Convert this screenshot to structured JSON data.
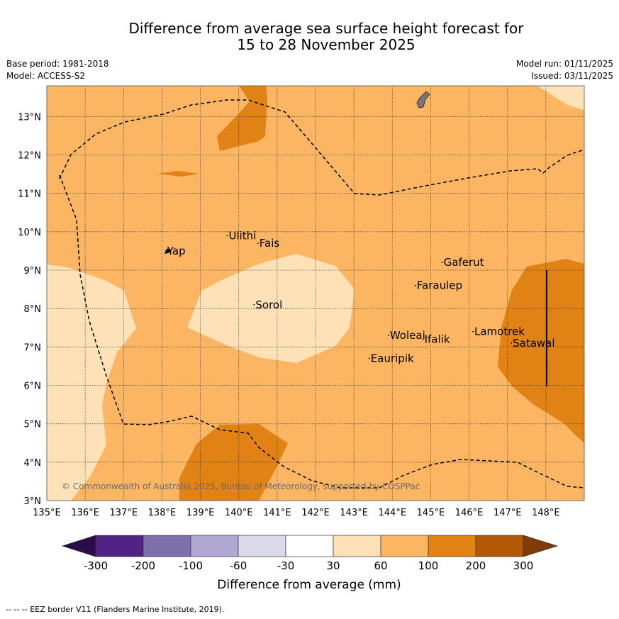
{
  "title": {
    "line1": "Difference from average sea surface height forecast for",
    "line2": "15 to 28 November 2025"
  },
  "meta": {
    "base_period": "Base period: 1981-2018",
    "model": "Model: ACCESS-S2",
    "model_run": "Model run: 01/11/2025",
    "issued": "Issued: 03/11/2025"
  },
  "map": {
    "lon_ticks": [
      "135°E",
      "136°E",
      "137°E",
      "138°E",
      "139°E",
      "140°E",
      "141°E",
      "142°E",
      "143°E",
      "144°E",
      "145°E",
      "146°E",
      "147°E",
      "148°E"
    ],
    "lat_ticks": [
      "3°N",
      "4°N",
      "5°N",
      "6°N",
      "7°N",
      "8°N",
      "9°N",
      "10°N",
      "11°N",
      "12°N",
      "13°N"
    ],
    "lon_range": [
      135,
      149
    ],
    "lat_range": [
      3,
      13.8
    ],
    "places": [
      {
        "name": "Yap",
        "lon": 138.1,
        "lat": 9.5
      },
      {
        "name": "Ulithi",
        "lon": 139.7,
        "lat": 9.9
      },
      {
        "name": "Fais",
        "lon": 140.5,
        "lat": 9.7
      },
      {
        "name": "Sorol",
        "lon": 140.4,
        "lat": 8.1
      },
      {
        "name": "Gaferut",
        "lon": 145.3,
        "lat": 9.2
      },
      {
        "name": "Faraulep",
        "lon": 144.6,
        "lat": 8.6
      },
      {
        "name": "Woleai",
        "lon": 143.9,
        "lat": 7.3
      },
      {
        "name": "Ifalik",
        "lon": 144.8,
        "lat": 7.2
      },
      {
        "name": "Lamotrek",
        "lon": 146.1,
        "lat": 7.4
      },
      {
        "name": "Satawal",
        "lon": 147.1,
        "lat": 7.1
      },
      {
        "name": "Eauripik",
        "lon": 143.4,
        "lat": 6.7
      }
    ],
    "copyright": "© Commonwealth of Australia 2025, Bureau of Meteorology, supported by COSPPac"
  },
  "colorbar": {
    "labels": [
      "-300",
      "-200",
      "-100",
      "-60",
      "-30",
      "30",
      "60",
      "100",
      "200",
      "300"
    ],
    "colors": [
      "#2b0b4a",
      "#512283",
      "#7e70ab",
      "#b0a8d2",
      "#dadaeb",
      "#ffffff",
      "#fee1b7",
      "#fbb563",
      "#e08214",
      "#b35806",
      "#7f3b08"
    ],
    "title": "Difference from average (mm)"
  },
  "footnote": "--  --  -- EEZ border V11 (Flanders Marine Institute, 2019)."
}
